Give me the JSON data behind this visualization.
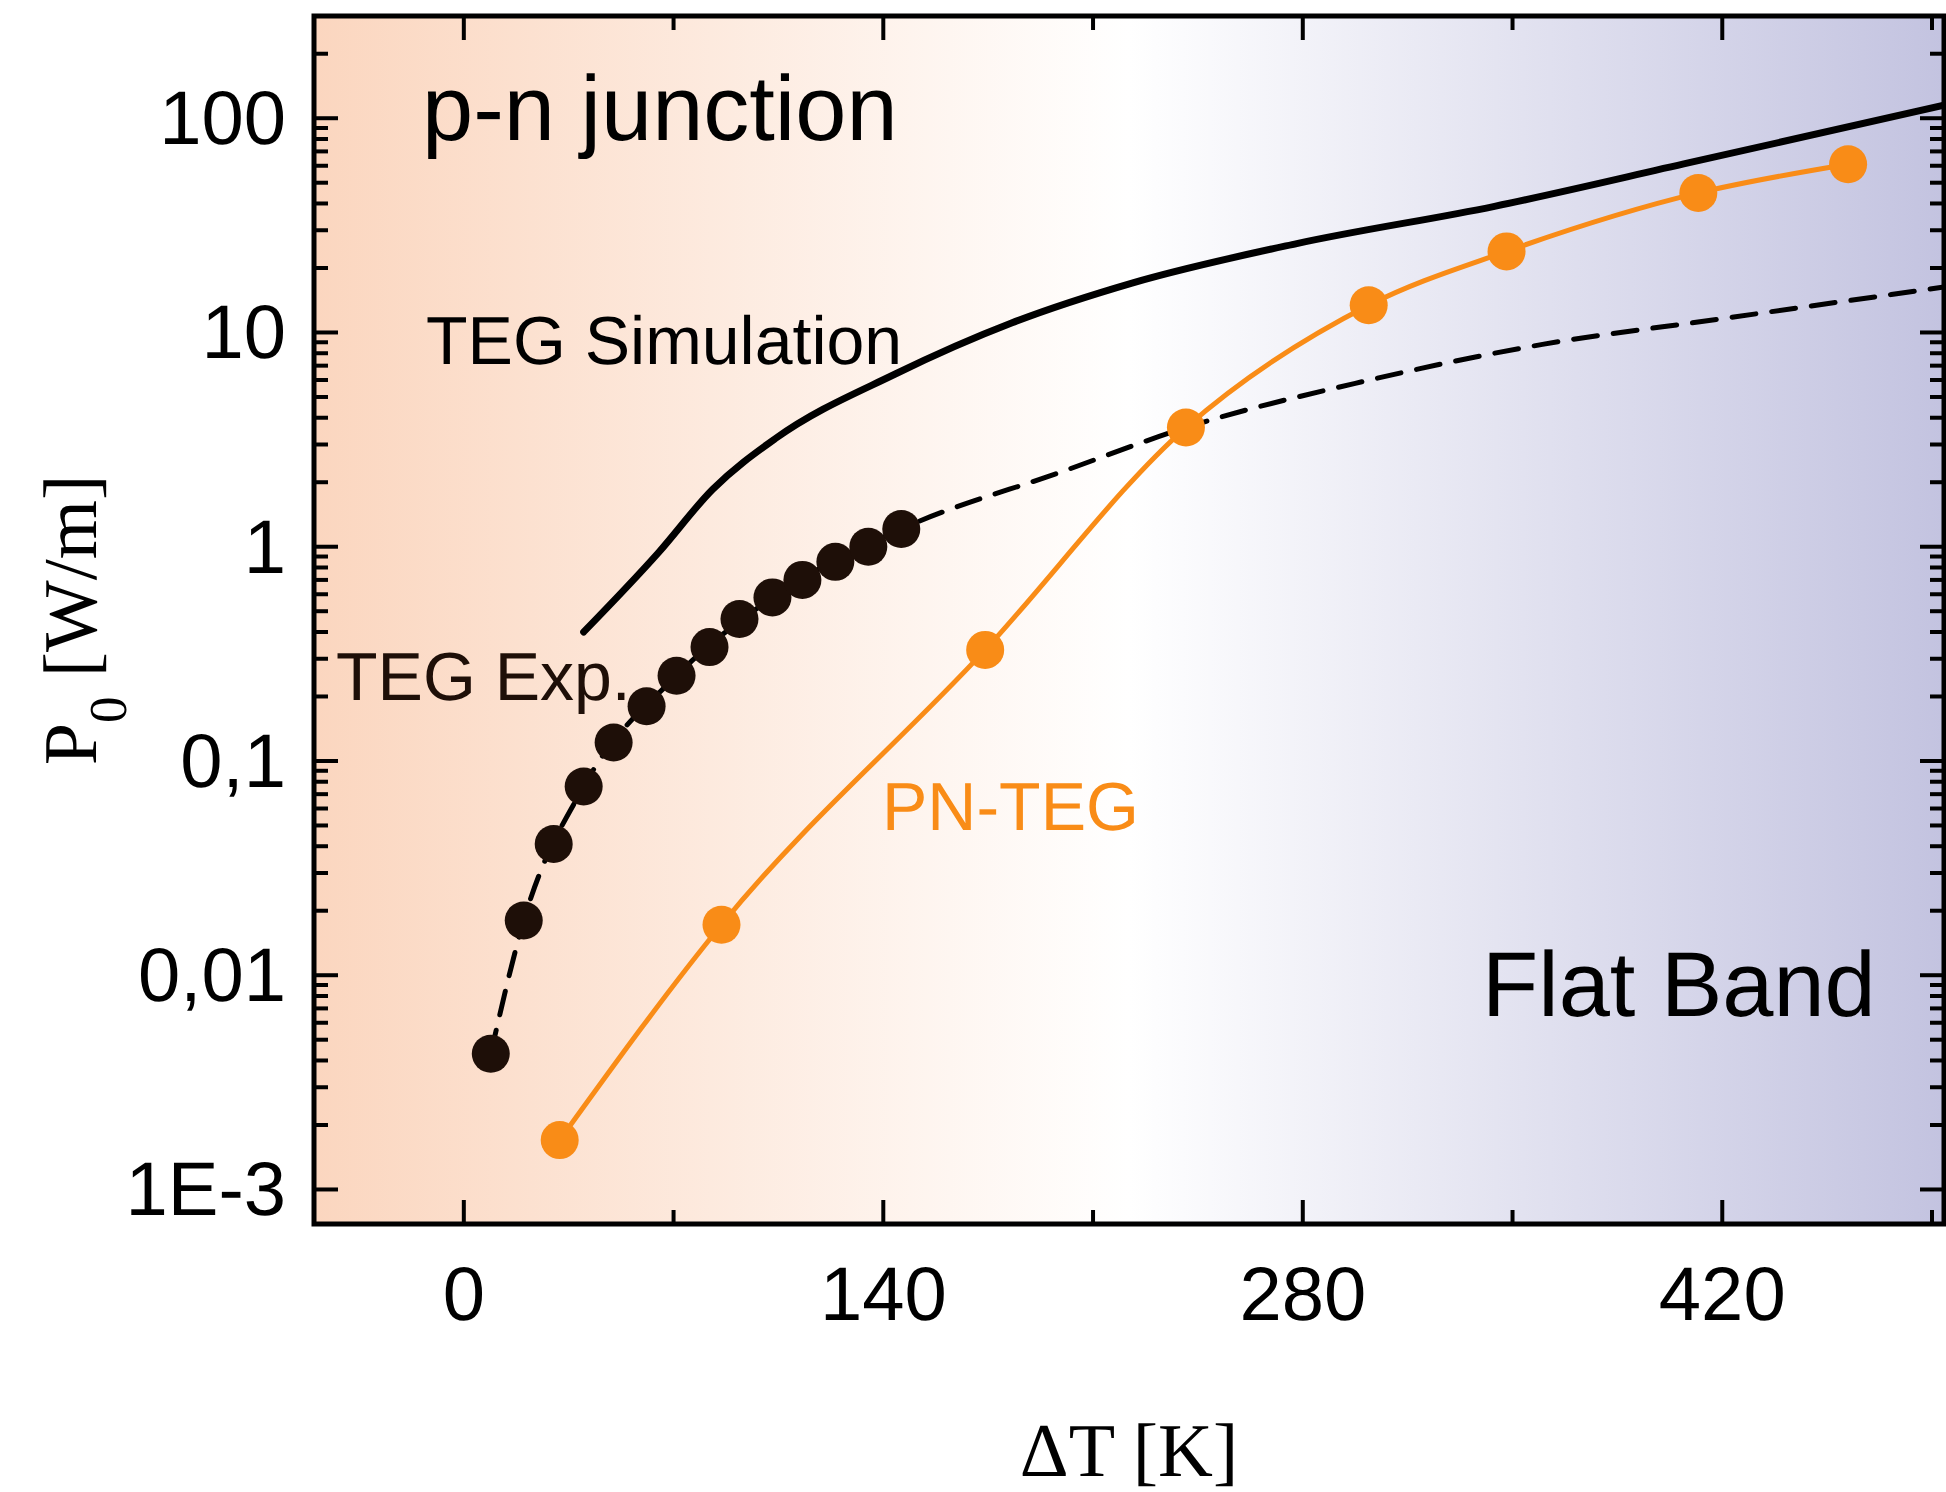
{
  "chart_data": {
    "type": "line",
    "xlabel": "ΔT [K]",
    "ylabel": "P$_{0}$ [W/m]",
    "log": "y",
    "grid": false,
    "xlim": [
      -50,
      494
    ],
    "ylim": [
      0.00069,
      300
    ],
    "xticks": [
      0,
      140,
      280,
      420,
      {
        "value": 70,
        "label": null
      },
      {
        "value": 210,
        "label": null
      },
      {
        "value": 350,
        "label": null
      },
      {
        "value": 490,
        "label": null
      }
    ],
    "yticks": [
      {
        "value": 0.001,
        "label": "1E-3"
      },
      {
        "value": 0.01,
        "label": "0,01"
      },
      {
        "value": 0.1,
        "label": "0,1"
      },
      1,
      10,
      100,
      {
        "value": 0.002,
        "label": null
      },
      {
        "value": 0.003,
        "label": null
      },
      {
        "value": 0.004,
        "label": null
      },
      {
        "value": 0.005,
        "label": null
      },
      {
        "value": 0.006,
        "label": null
      },
      {
        "value": 0.007,
        "label": null
      },
      {
        "value": 0.008,
        "label": null
      },
      {
        "value": 0.009,
        "label": null
      },
      {
        "value": 0.02,
        "label": null
      },
      {
        "value": 0.03,
        "label": null
      },
      {
        "value": 0.04,
        "label": null
      },
      {
        "value": 0.05,
        "label": null
      },
      {
        "value": 0.06,
        "label": null
      },
      {
        "value": 0.07,
        "label": null
      },
      {
        "value": 0.08,
        "label": null
      },
      {
        "value": 0.09,
        "label": null
      },
      {
        "value": 0.2,
        "label": null
      },
      {
        "value": 0.3,
        "label": null
      },
      {
        "value": 0.4,
        "label": null
      },
      {
        "value": 0.5,
        "label": null
      },
      {
        "value": 0.6,
        "label": null
      },
      {
        "value": 0.7,
        "label": null
      },
      {
        "value": 0.8,
        "label": null
      },
      {
        "value": 0.9,
        "label": null
      },
      {
        "value": 2,
        "label": null
      },
      {
        "value": 3,
        "label": null
      },
      {
        "value": 4,
        "label": null
      },
      {
        "value": 5,
        "label": null
      },
      {
        "value": 6,
        "label": null
      },
      {
        "value": 7,
        "label": null
      },
      {
        "value": 8,
        "label": null
      },
      {
        "value": 9,
        "label": null
      },
      {
        "value": 20,
        "label": null
      },
      {
        "value": 30,
        "label": null
      },
      {
        "value": 40,
        "label": null
      },
      {
        "value": 50,
        "label": null
      },
      {
        "value": 60,
        "label": null
      },
      {
        "value": 70,
        "label": null
      },
      {
        "value": 80,
        "label": null
      },
      {
        "value": 90,
        "label": null
      },
      {
        "value": 200,
        "label": null
      }
    ],
    "series": [
      {
        "name": "TEG Simulation",
        "color": "#000000",
        "line_style": "solid",
        "marker": "none",
        "x": [
          40,
          65,
          83,
          104,
          144,
          183,
          223,
          278,
          344,
          409,
          494
        ],
        "values": [
          0.4,
          0.94,
          1.85,
          3.2,
          6.4,
          11.1,
          17,
          26,
          38.8,
          62,
          115
        ]
      },
      {
        "color": "#000000",
        "line_style": "dashed",
        "marker": "none",
        "x": [
          9,
          20,
          40,
          71,
          103,
          146,
          200,
          241,
          300,
          360,
          420,
          494
        ],
        "values": [
          0.0043,
          0.018,
          0.076,
          0.25,
          0.58,
          1.21,
          2.25,
          3.6,
          5.9,
          8.8,
          11.6,
          16.3
        ]
      },
      {
        "name": "TEG Exp.",
        "type": "scatter",
        "color": "#1e0f08",
        "marker": "circle",
        "x": [
          9,
          20,
          30,
          40,
          50,
          61,
          71,
          82,
          92,
          103,
          113,
          124,
          135,
          146
        ],
        "values": [
          0.0043,
          0.018,
          0.041,
          0.076,
          0.122,
          0.18,
          0.25,
          0.34,
          0.46,
          0.58,
          0.7,
          0.85,
          1.0,
          1.21
        ]
      },
      {
        "name": "PN-TEG",
        "color": "#f98c17",
        "line_style": "solid",
        "marker": "circle",
        "x": [
          32,
          86,
          174,
          241,
          302,
          348,
          412,
          462
        ],
        "values": [
          0.0017,
          0.0172,
          0.33,
          3.6,
          13.4,
          23.9,
          44.8,
          61
        ]
      }
    ],
    "annotations": [
      "p-n junction",
      "Flat Band"
    ]
  }
}
